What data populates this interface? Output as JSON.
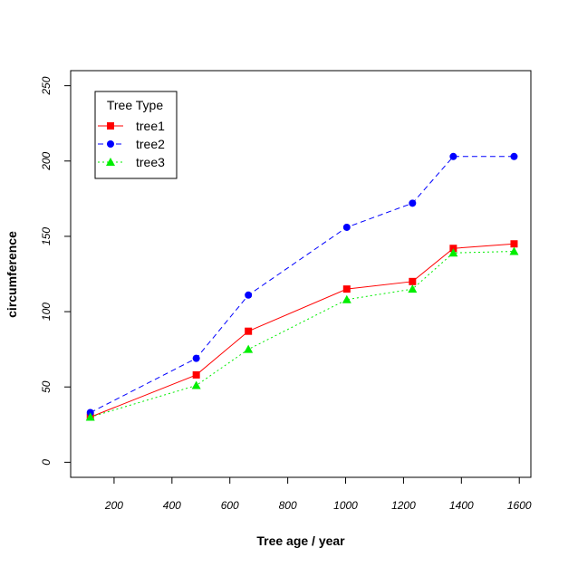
{
  "chart_data": {
    "type": "line",
    "title": "",
    "xlabel": "Tree age / year",
    "ylabel": "circumference",
    "xlim": [
      50,
      1640
    ],
    "ylim": [
      -10,
      260
    ],
    "x_ticks": [
      200,
      400,
      600,
      800,
      1000,
      1200,
      1400,
      1600
    ],
    "y_ticks": [
      0,
      50,
      100,
      150,
      200,
      250
    ],
    "x": [
      118,
      484,
      664,
      1004,
      1231,
      1372,
      1582
    ],
    "series": [
      {
        "name": "tree1",
        "color": "#ff0000",
        "marker": "square",
        "line": "solid",
        "values": [
          30,
          58,
          87,
          115,
          120,
          142,
          145
        ]
      },
      {
        "name": "tree2",
        "color": "#0000ff",
        "marker": "circle",
        "line": "dashed",
        "values": [
          33,
          69,
          111,
          156,
          172,
          203,
          203
        ]
      },
      {
        "name": "tree3",
        "color": "#00ee00",
        "marker": "triangle",
        "line": "dotted",
        "values": [
          30,
          51,
          75,
          108,
          115,
          139,
          140
        ]
      }
    ],
    "legend": {
      "title": "Tree Type",
      "position": "top-left"
    },
    "grid": false
  }
}
